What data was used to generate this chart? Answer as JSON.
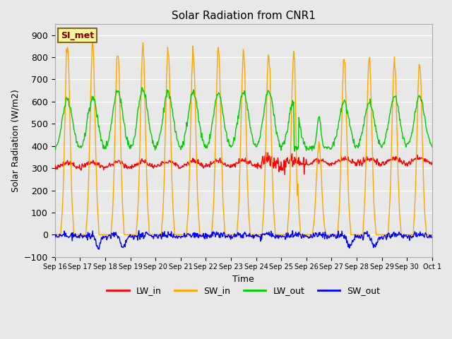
{
  "title": "Solar Radiation from CNR1",
  "xlabel": "Time",
  "ylabel": "Solar Radiation (W/m2)",
  "ylim": [
    -100,
    950
  ],
  "yticks": [
    -100,
    0,
    100,
    200,
    300,
    400,
    500,
    600,
    700,
    800,
    900
  ],
  "bg_color": "#e8e8e8",
  "grid_color": "white",
  "colors": {
    "LW_in": "#ff0000",
    "SW_in": "#ffa500",
    "LW_out": "#00cc00",
    "SW_out": "#0000ff"
  },
  "annotation_text": "SI_met",
  "annotation_color": "#8B0000",
  "annotation_bg": "#f5f5a0",
  "annotation_border": "#8B6914",
  "n_days": 15,
  "x_tick_labels": [
    "Sep 16",
    "Sep 17",
    "Sep 18",
    "Sep 19",
    "Sep 20",
    "Sep 21",
    "Sep 22",
    "Sep 23",
    "Sep 24",
    "Sep 25",
    "Sep 26",
    "Sep 27",
    "Sep 28",
    "Sep 29",
    "Sep 30",
    "Oct 1"
  ],
  "legend_labels": [
    "LW_in",
    "SW_in",
    "LW_out",
    "SW_out"
  ]
}
